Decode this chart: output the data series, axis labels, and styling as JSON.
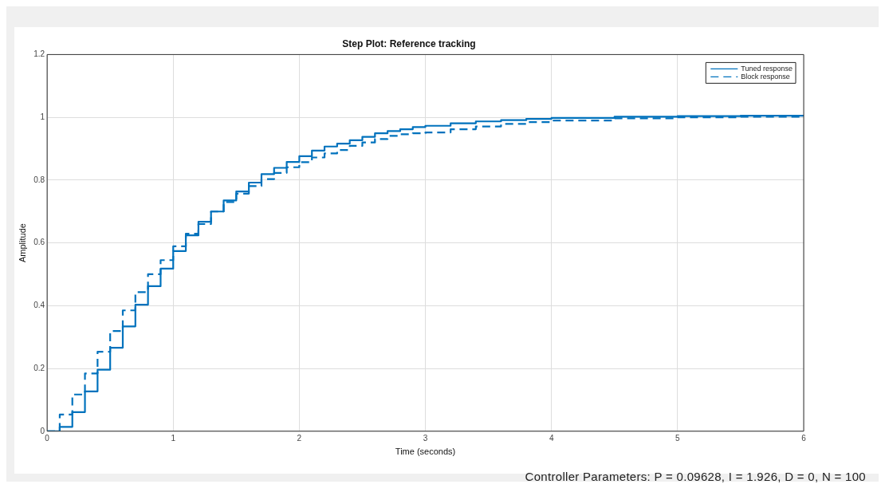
{
  "chart_data": {
    "type": "step",
    "title": "Step Plot: Reference tracking",
    "xlabel": "Time (seconds)",
    "ylabel": "Amplitude",
    "xlim": [
      0,
      6
    ],
    "xticks": [
      0,
      1,
      2,
      3,
      4,
      5,
      6
    ],
    "ylim": [
      0,
      1.2
    ],
    "yticks": [
      0,
      0.2,
      0.4,
      0.6,
      0.8,
      1,
      1.2
    ],
    "grid": true,
    "legend": "top right",
    "annotations": [
      "Controller Parameters: P = 0.09628, I = 1.926, D =  0, N = 100"
    ],
    "series": [
      {
        "name": "Tuned response",
        "color": "#0072bd",
        "line_style": "solid",
        "x": [
          0,
          0.1,
          0.2,
          0.3,
          0.4,
          0.5,
          0.6,
          0.7,
          0.8,
          0.9,
          1,
          1.1,
          1.2,
          1.3,
          1.4,
          1.5,
          1.6,
          1.7,
          1.8,
          1.9,
          2,
          2.1,
          2.2,
          2.3,
          2.4,
          2.5,
          2.6,
          2.7,
          2.8,
          2.9,
          3,
          3.2,
          3.4,
          3.6,
          3.8,
          4,
          4.5,
          5,
          5.5,
          6
        ],
        "values": [
          0,
          0.014,
          0.061,
          0.127,
          0.196,
          0.266,
          0.334,
          0.403,
          0.462,
          0.518,
          0.574,
          0.624,
          0.667,
          0.7,
          0.735,
          0.764,
          0.792,
          0.819,
          0.839,
          0.858,
          0.876,
          0.894,
          0.907,
          0.916,
          0.927,
          0.938,
          0.949,
          0.956,
          0.962,
          0.969,
          0.973,
          0.981,
          0.987,
          0.991,
          0.995,
          0.998,
          1.002,
          1.004,
          1.005,
          1.005
        ]
      },
      {
        "name": "Block response",
        "color": "#0072bd",
        "line_style": "dashed",
        "x": [
          0,
          0.1,
          0.2,
          0.3,
          0.4,
          0.5,
          0.6,
          0.7,
          0.8,
          0.9,
          1,
          1.1,
          1.2,
          1.3,
          1.4,
          1.5,
          1.6,
          1.7,
          1.8,
          1.9,
          2,
          2.1,
          2.2,
          2.3,
          2.4,
          2.5,
          2.6,
          2.7,
          2.8,
          2.9,
          3,
          3.2,
          3.4,
          3.6,
          3.8,
          4,
          4.5,
          5,
          5.5,
          6
        ],
        "values": [
          0,
          0.053,
          0.117,
          0.184,
          0.253,
          0.319,
          0.385,
          0.443,
          0.5,
          0.545,
          0.589,
          0.629,
          0.66,
          0.7,
          0.73,
          0.757,
          0.781,
          0.803,
          0.823,
          0.841,
          0.857,
          0.872,
          0.885,
          0.896,
          0.909,
          0.92,
          0.931,
          0.941,
          0.946,
          0.949,
          0.952,
          0.962,
          0.971,
          0.979,
          0.985,
          0.99,
          0.997,
          1,
          1.002,
          1.003
        ]
      }
    ]
  }
}
